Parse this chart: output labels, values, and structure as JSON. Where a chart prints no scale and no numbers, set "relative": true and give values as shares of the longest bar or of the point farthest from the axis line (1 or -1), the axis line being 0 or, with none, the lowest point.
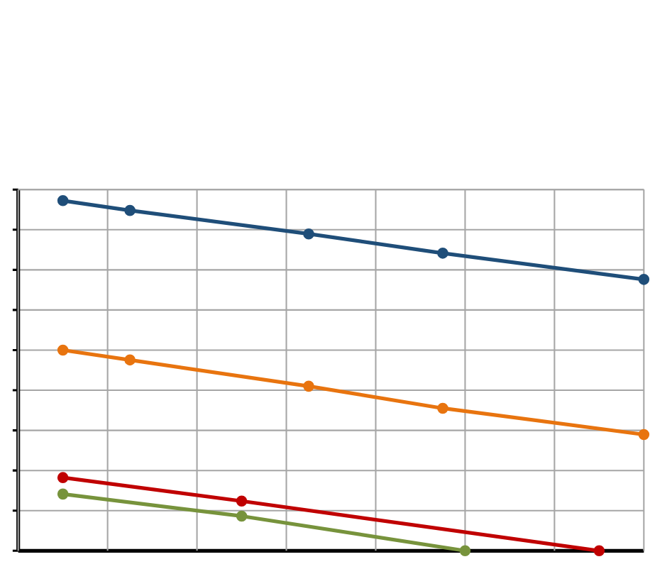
{
  "chart_data": {
    "type": "line",
    "relative": true,
    "grid": true,
    "marker": "circle",
    "line_style": "solid",
    "categories": [
      null,
      null,
      null,
      null,
      null,
      null,
      null,
      null,
      null,
      null,
      null,
      null,
      null,
      null,
      null,
      null,
      null,
      null,
      null,
      null,
      null,
      null,
      null,
      null,
      null,
      null,
      null,
      null,
      null
    ],
    "series": [
      {
        "color": "#1f4e79",
        "values": [
          null,
          null,
          1.0,
          null,
          null,
          0.972,
          null,
          null,
          null,
          null,
          null,
          null,
          null,
          0.905,
          null,
          null,
          null,
          null,
          null,
          0.85,
          null,
          null,
          null,
          null,
          null,
          null,
          null,
          null,
          0.775
        ]
      },
      {
        "color": "#e8740f",
        "values": [
          null,
          null,
          0.573,
          null,
          null,
          0.545,
          null,
          null,
          null,
          null,
          null,
          null,
          null,
          0.47,
          null,
          null,
          null,
          null,
          null,
          0.407,
          null,
          null,
          null,
          null,
          null,
          null,
          null,
          null,
          0.332
        ]
      },
      {
        "color": "#c00000",
        "values": [
          null,
          null,
          0.209,
          null,
          null,
          null,
          null,
          null,
          null,
          null,
          0.142,
          null,
          null,
          null,
          null,
          null,
          null,
          null,
          null,
          null,
          null,
          null,
          null,
          null,
          null,
          null,
          0.0,
          null,
          null
        ]
      },
      {
        "color": "#77933c",
        "values": [
          null,
          null,
          0.162,
          null,
          null,
          null,
          null,
          null,
          null,
          null,
          0.099,
          null,
          null,
          null,
          null,
          null,
          null,
          null,
          null,
          null,
          0.0,
          null,
          null,
          null,
          null,
          null,
          null,
          null,
          null
        ]
      }
    ]
  }
}
